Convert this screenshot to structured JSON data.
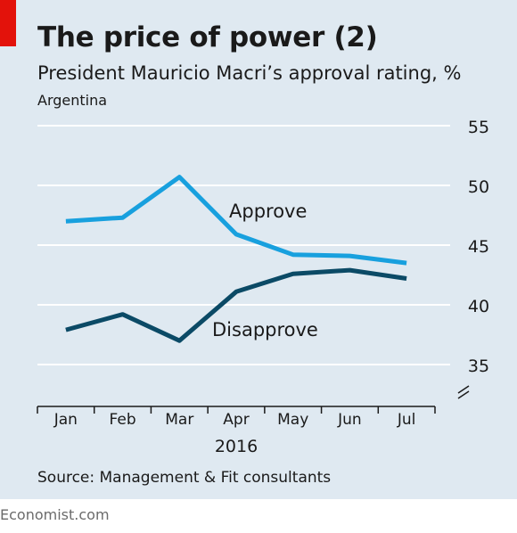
{
  "header": {
    "title": "The price of power (2)",
    "subtitle": "President Mauricio Macri’s approval rating, %",
    "region": "Argentina"
  },
  "footer": {
    "source": "Source: Management & Fit consultants",
    "brand": "Economist.com"
  },
  "colors": {
    "background": "#dfe9f1",
    "accent_red": "#e3120b",
    "approve": "#18a0de",
    "disapprove": "#0b4a66",
    "gridline": "#ffffff"
  },
  "chart_data": {
    "type": "line",
    "title": "The price of power (2)",
    "subtitle": "President Mauricio Macri’s approval rating, %",
    "categories": [
      "Jan",
      "Feb",
      "Mar",
      "Apr",
      "May",
      "Jun",
      "Jul"
    ],
    "xlabel": "2016",
    "ylim": [
      35,
      55
    ],
    "yticks": [
      55,
      50,
      45,
      40,
      35
    ],
    "axis_break": true,
    "grid": true,
    "series": [
      {
        "name": "Approve",
        "color": "#18a0de",
        "values": [
          47.0,
          47.3,
          50.7,
          45.9,
          44.2,
          44.1,
          43.5
        ]
      },
      {
        "name": "Disapprove",
        "color": "#0b4a66",
        "values": [
          37.9,
          39.2,
          37.0,
          41.1,
          42.6,
          42.9,
          42.2
        ]
      }
    ]
  }
}
